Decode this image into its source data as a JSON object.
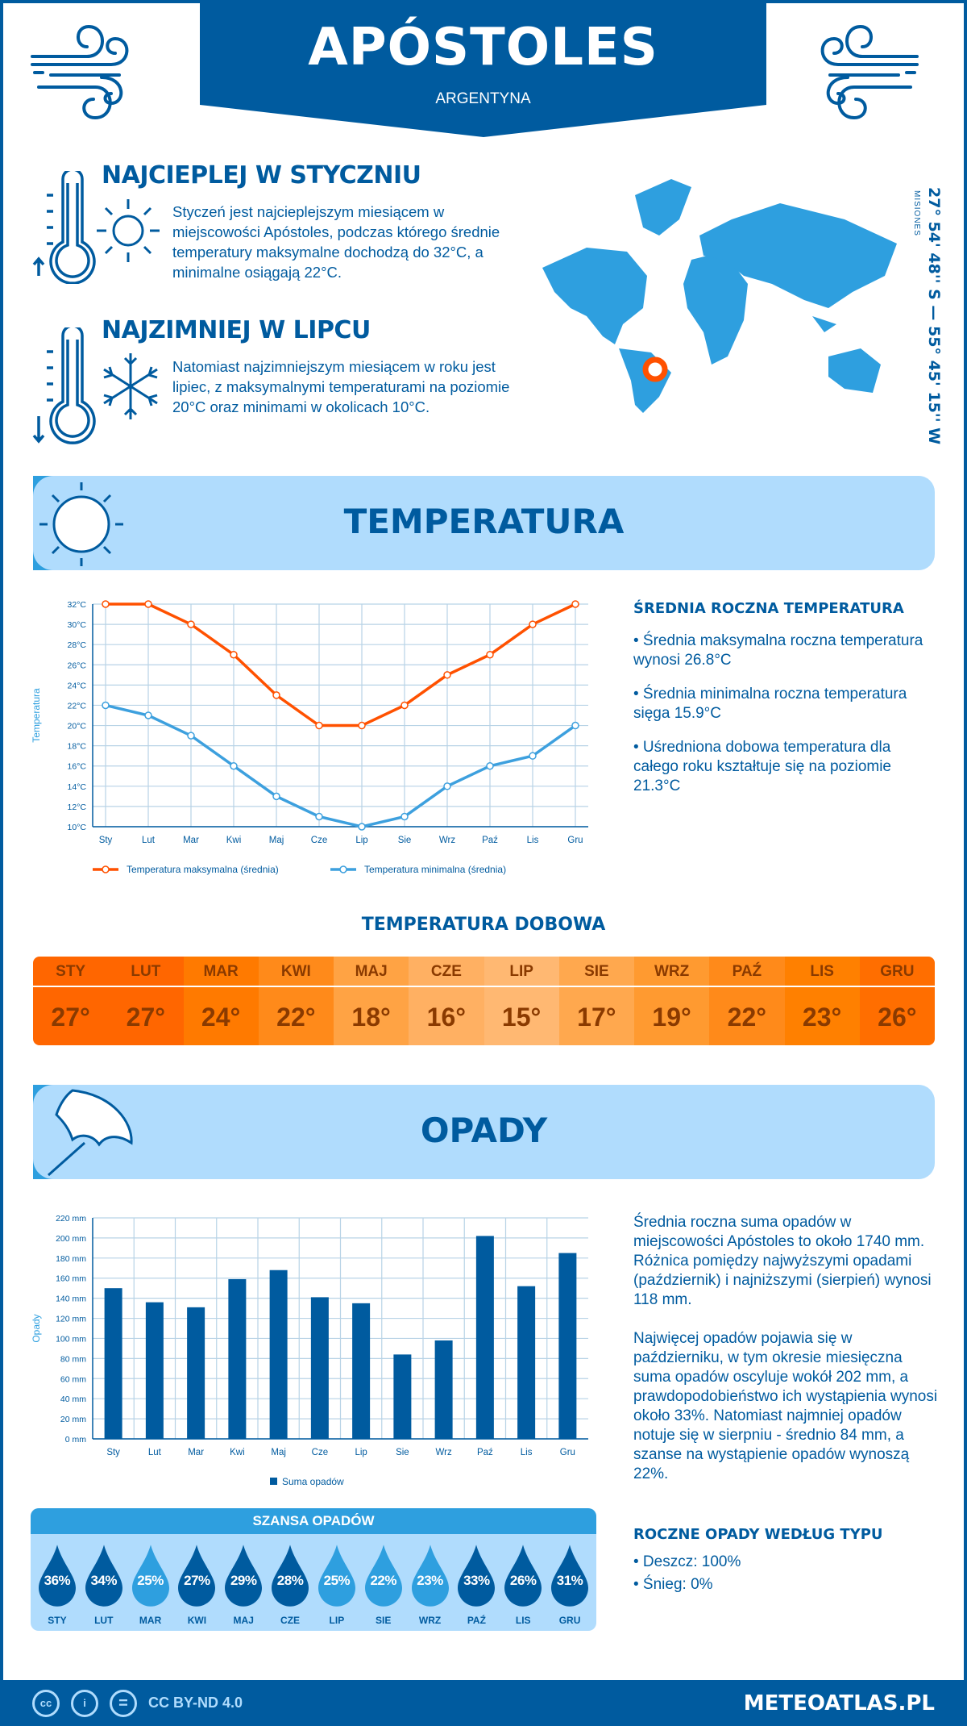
{
  "header": {
    "city": "APÓSTOLES",
    "country": "ARGENTYNA"
  },
  "warmest": {
    "title": "NAJCIEPLEJ W STYCZNIU",
    "text": "Styczeń jest najcieplejszym miesiącem w miejscowości Apóstoles, podczas którego średnie temperatury maksymalne dochodzą do 32°C, a minimalne osiągają 22°C."
  },
  "coldest": {
    "title": "NAJZIMNIEJ W LIPCU",
    "text": "Natomiast najzimniejszym miesiącem w roku jest lipiec, z maksymalnymi temperaturami na poziomie 20°C oraz minimami w okolicach 10°C."
  },
  "location": {
    "coords": "27° 54' 48'' S — 55° 45' 15'' W",
    "region": "MISIONES"
  },
  "temperature": {
    "banner": "TEMPERATURA",
    "summary_title": "ŚREDNIA ROCZNA TEMPERATURA",
    "bullets": [
      "• Średnia maksymalna roczna temperatura wynosi 26.8°C",
      "• Średnia minimalna roczna temperatura sięga 15.9°C",
      "• Uśredniona dobowa temperatura dla całego roku kształtuje się na poziomie 21.3°C"
    ],
    "daily_title": "TEMPERATURA DOBOWA",
    "daily": [
      {
        "m": "STY",
        "v": "27°",
        "color": "#ff6600"
      },
      {
        "m": "LUT",
        "v": "27°",
        "color": "#ff6600"
      },
      {
        "m": "MAR",
        "v": "24°",
        "color": "#ff7a00"
      },
      {
        "m": "KWI",
        "v": "22°",
        "color": "#ff8a1a"
      },
      {
        "m": "MAJ",
        "v": "18°",
        "color": "#ffa344"
      },
      {
        "m": "CZE",
        "v": "16°",
        "color": "#ffb062"
      },
      {
        "m": "LIP",
        "v": "15°",
        "color": "#ffb872"
      },
      {
        "m": "SIE",
        "v": "17°",
        "color": "#ffa84e"
      },
      {
        "m": "WRZ",
        "v": "19°",
        "color": "#ff9a30"
      },
      {
        "m": "PAŹ",
        "v": "22°",
        "color": "#ff8a1a"
      },
      {
        "m": "LIS",
        "v": "23°",
        "color": "#ff8000"
      },
      {
        "m": "GRU",
        "v": "26°",
        "color": "#ff6e00"
      }
    ]
  },
  "precipitation": {
    "banner": "OPADY",
    "text1": "Średnia roczna suma opadów w miejscowości Apóstoles to około 1740 mm. Różnica pomiędzy najwyższymi opadami (październik) i najniższymi (sierpień) wynosi 118 mm.",
    "text2": "Najwięcej opadów pojawia się w październiku, w tym okresie miesięczna suma opadów oscyluje wokół 202 mm, a prawdopodobieństwo ich wystąpienia wynosi około 33%. Natomiast najmniej opadów notuje się w sierpniu - średnio 84 mm, a szanse na wystąpienie opadów wynoszą 22%.",
    "chance_title": "SZANSA OPADÓW",
    "chance": [
      {
        "m": "STY",
        "p": "36%"
      },
      {
        "m": "LUT",
        "p": "34%"
      },
      {
        "m": "MAR",
        "p": "25%"
      },
      {
        "m": "KWI",
        "p": "27%"
      },
      {
        "m": "MAJ",
        "p": "29%"
      },
      {
        "m": "CZE",
        "p": "28%"
      },
      {
        "m": "LIP",
        "p": "25%"
      },
      {
        "m": "SIE",
        "p": "22%"
      },
      {
        "m": "WRZ",
        "p": "23%"
      },
      {
        "m": "PAŹ",
        "p": "33%"
      },
      {
        "m": "LIS",
        "p": "26%"
      },
      {
        "m": "GRU",
        "p": "31%"
      }
    ],
    "type_title": "ROCZNE OPADY WEDŁUG TYPU",
    "types": [
      "• Deszcz: 100%",
      "• Śnieg: 0%"
    ]
  },
  "chart_data": [
    {
      "type": "line",
      "categories": [
        "Sty",
        "Lut",
        "Mar",
        "Kwi",
        "Maj",
        "Cze",
        "Lip",
        "Sie",
        "Wrz",
        "Paź",
        "Lis",
        "Gru"
      ],
      "series": [
        {
          "name": "Temperatura maksymalna (średnia)",
          "values": [
            32,
            32,
            30,
            27,
            23,
            20,
            20,
            22,
            25,
            27,
            30,
            32
          ],
          "color": "#ff5100"
        },
        {
          "name": "Temperatura minimalna (średnia)",
          "values": [
            22,
            21,
            19,
            16,
            13,
            11,
            10,
            11,
            14,
            16,
            17,
            20
          ],
          "color": "#3da0de"
        }
      ],
      "ylabel": "Temperatura",
      "ylim": [
        10,
        32
      ],
      "yticks": [
        "10°C",
        "12°C",
        "14°C",
        "16°C",
        "18°C",
        "20°C",
        "22°C",
        "24°C",
        "26°C",
        "28°C",
        "30°C",
        "32°C"
      ],
      "grid": true,
      "legend": "bottom"
    },
    {
      "type": "bar",
      "categories": [
        "Sty",
        "Lut",
        "Mar",
        "Kwi",
        "Maj",
        "Cze",
        "Lip",
        "Sie",
        "Wrz",
        "Paź",
        "Lis",
        "Gru"
      ],
      "series": [
        {
          "name": "Suma opadów",
          "values": [
            150,
            136,
            131,
            159,
            168,
            141,
            135,
            84,
            98,
            202,
            152,
            185
          ],
          "color": "#005b9f"
        }
      ],
      "ylabel": "Opady",
      "ylim": [
        0,
        220
      ],
      "yticks": [
        "0 mm",
        "20 mm",
        "40 mm",
        "60 mm",
        "80 mm",
        "100 mm",
        "120 mm",
        "140 mm",
        "160 mm",
        "180 mm",
        "200 mm",
        "220 mm"
      ],
      "grid": true,
      "legend": "bottom"
    }
  ],
  "footer": {
    "license": "CC BY-ND 4.0",
    "brand": "METEOATLAS.PL",
    "cc": "cc",
    "by": "i",
    "nd": "="
  },
  "colors": {
    "dark_blue": "#005b9f",
    "light_blue": "#2e9fdf",
    "pale_blue": "#b0dcfd",
    "orange": "#ff5100"
  }
}
